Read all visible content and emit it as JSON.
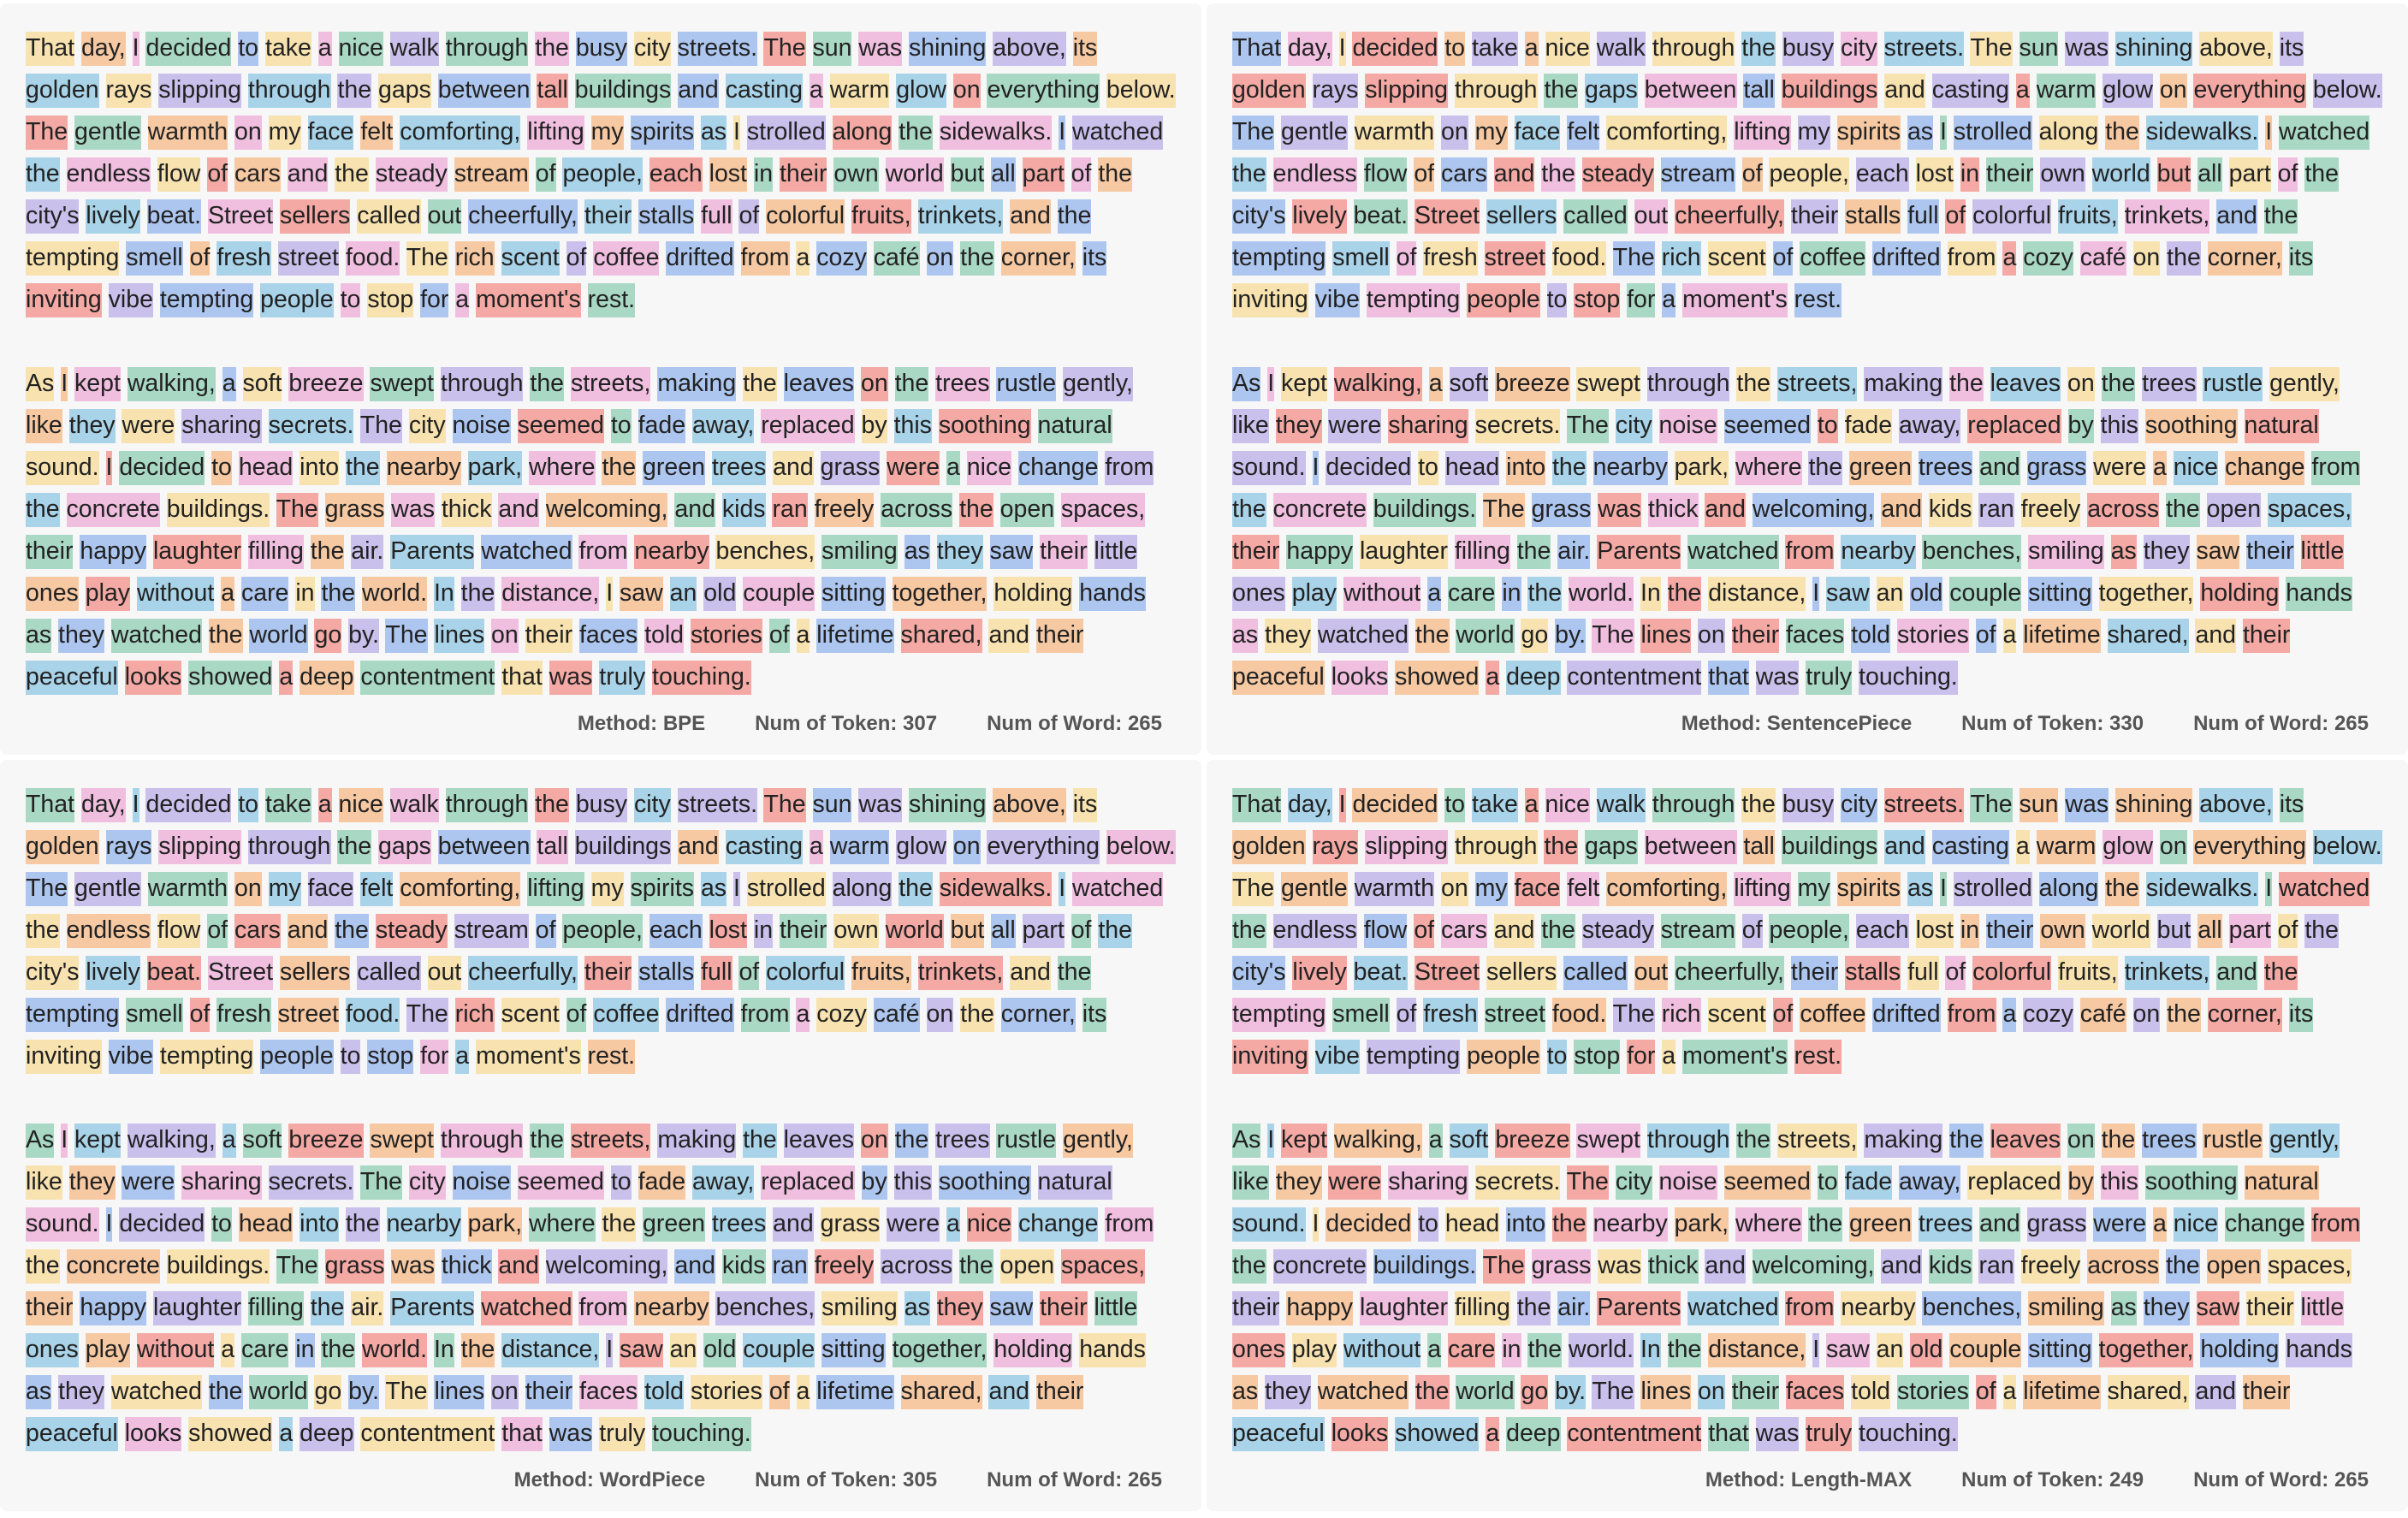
{
  "palette": [
    "#f4a9a4",
    "#f6c9a3",
    "#f8e3b0",
    "#a9d8c5",
    "#a9d3e8",
    "#adc6ef",
    "#c9c0ec",
    "#f0bfe0"
  ],
  "paragraphs": [
    "That day, I decided to take a nice walk through the busy city streets. The sun was shining above, its golden rays slipping through the gaps between tall buildings and casting a warm glow on everything below. The gentle warmth on my face felt comforting, lifting my spirits as I strolled along the sidewalks. I watched the endless flow of cars and the steady stream of people, each lost in their own world but all part of the city's lively beat. Street sellers called out cheerfully, their stalls full of colorful fruits, trinkets, and the tempting smell of fresh street food. The rich scent of coffee drifted from a cozy café on the corner, its inviting vibe tempting people to stop for a moment's rest.",
    "As I kept walking, a soft breeze swept through the streets, making the leaves on the trees rustle gently, like they were sharing secrets. The city noise seemed to fade away, replaced by this soothing natural sound. I decided to head into the nearby park, where the green trees and grass were a nice change from the concrete buildings. The grass was thick and welcoming, and kids ran freely across the open spaces, their happy laughter filling the air. Parents watched from nearby benches, smiling as they saw their little ones play without a care in the world. In the distance, I saw an old couple sitting together, holding hands as they watched the world go by. The lines on their faces told stories of a lifetime shared, and their peaceful looks showed a deep contentment that was truly touching."
  ],
  "panels": [
    {
      "method": "Method: BPE",
      "tokens": "Num of Token: 307",
      "words": "Num of Word: 265",
      "seed": 3
    },
    {
      "method": "Method: SentencePiece",
      "tokens": "Num of Token: 330",
      "words": "Num of Word: 265",
      "seed": 11
    },
    {
      "method": "Method: WordPiece",
      "tokens": "Num of Token: 305",
      "words": "Num of Word: 265",
      "seed": 5
    },
    {
      "method": "Method: Length-MAX",
      "tokens": "Num of Token: 249",
      "words": "Num of Word: 265",
      "seed": 7
    }
  ]
}
